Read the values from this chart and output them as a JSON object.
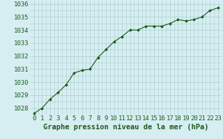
{
  "x": [
    0,
    1,
    2,
    3,
    4,
    5,
    6,
    7,
    8,
    9,
    10,
    11,
    12,
    13,
    14,
    15,
    16,
    17,
    18,
    19,
    20,
    21,
    22,
    23
  ],
  "y": [
    1027.6,
    1028.0,
    1028.7,
    1029.2,
    1029.8,
    1030.7,
    1030.9,
    1031.0,
    1031.9,
    1032.5,
    1033.1,
    1033.5,
    1034.0,
    1034.0,
    1034.3,
    1034.3,
    1034.3,
    1034.5,
    1034.8,
    1034.7,
    1034.8,
    1035.0,
    1035.5,
    1035.7
  ],
  "xlabel": "Graphe pression niveau de la mer (hPa)",
  "ylim": [
    1027.5,
    1036.25
  ],
  "xlim": [
    -0.5,
    23.5
  ],
  "yticks": [
    1028,
    1029,
    1030,
    1031,
    1032,
    1033,
    1034,
    1035,
    1036
  ],
  "xticks": [
    0,
    1,
    2,
    3,
    4,
    5,
    6,
    7,
    8,
    9,
    10,
    11,
    12,
    13,
    14,
    15,
    16,
    17,
    18,
    19,
    20,
    21,
    22,
    23
  ],
  "line_color": "#1a5c1a",
  "marker": "D",
  "marker_size": 2.0,
  "bg_color": "#d6eef2",
  "grid_color": "#aacccc",
  "xlabel_color": "#1a5c1a",
  "xlabel_fontsize": 7.5,
  "tick_fontsize": 6.5,
  "tick_color": "#1a5c1a"
}
